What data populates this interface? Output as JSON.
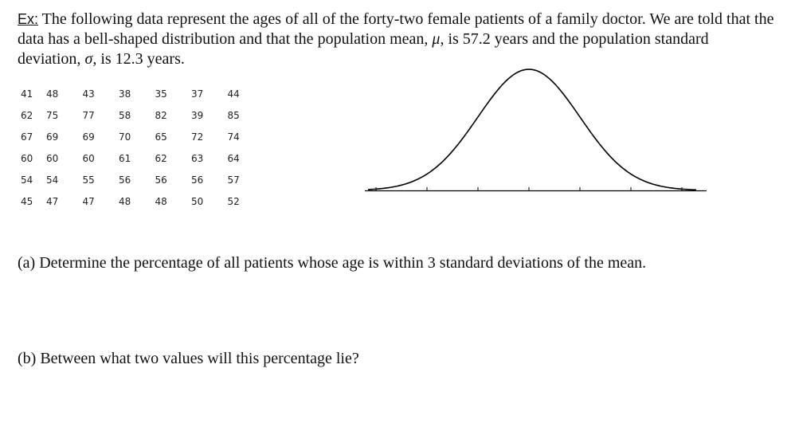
{
  "intro": {
    "label": "Ex:",
    "text_1": " The following data represent the ages of all of the forty-two female patients of a family doctor. We are told that the data has a bell-shaped distribution and that the population mean, ",
    "mu": "μ",
    "text_2": ", is 57.2 years and the population standard deviation, ",
    "sigma": "σ",
    "text_3": ", is 12.3 years."
  },
  "ages_table": [
    [
      "41",
      "48",
      "43",
      "38",
      "35",
      "37",
      "44"
    ],
    [
      "62",
      "75",
      "77",
      "58",
      "82",
      "39",
      "85"
    ],
    [
      "67",
      "69",
      "69",
      "70",
      "65",
      "72",
      "74"
    ],
    [
      "60",
      "60",
      "60",
      "61",
      "62",
      "63",
      "64"
    ],
    [
      "54",
      "54",
      "55",
      "56",
      "56",
      "56",
      "57"
    ],
    [
      "45",
      "47",
      "47",
      "48",
      "48",
      "50",
      "52"
    ]
  ],
  "questions": {
    "a": "(a) Determine the percentage of all patients whose age is within 3 standard deviations of the mean.",
    "b": "(b) Between what two values will this percentage lie?"
  }
}
